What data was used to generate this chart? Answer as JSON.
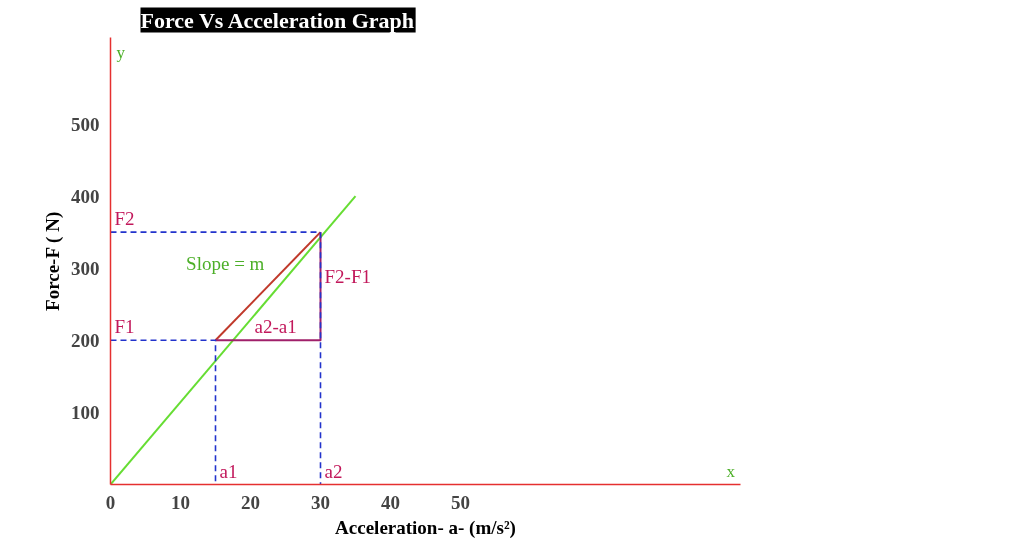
{
  "chart_data": {
    "type": "line",
    "title": "Force Vs Acceleration Graph",
    "xlabel": "Acceleration- a- (m/s²)",
    "ylabel": "Force-F ( N)",
    "xlim": [
      0,
      90
    ],
    "ylim": [
      0,
      620
    ],
    "xticks": [
      0,
      10,
      20,
      30,
      40,
      50
    ],
    "yticks": [
      100,
      200,
      300,
      400,
      500
    ],
    "grid": false,
    "series": [
      {
        "x": [
          0,
          35
        ],
        "values": [
          0,
          400
        ],
        "color": "#66dd33",
        "line_style": "solid"
      },
      {
        "x": [
          15,
          30
        ],
        "values": [
          200,
          350
        ],
        "color": "#c0392b",
        "line_style": "solid"
      },
      {
        "x": [
          15,
          30,
          30
        ],
        "values": [
          200,
          200,
          350
        ],
        "color": "#a0206a",
        "line_style": "solid"
      },
      {
        "x": [
          0,
          15,
          15
        ],
        "values": [
          200,
          200,
          0
        ],
        "color": "#2233cc",
        "line_style": "dashed"
      },
      {
        "x": [
          0,
          30,
          30
        ],
        "values": [
          350,
          350,
          0
        ],
        "color": "#2233cc",
        "line_style": "dashed"
      }
    ],
    "annotations": [
      {
        "text": "F1",
        "x": 0,
        "y": 200
      },
      {
        "text": "F2",
        "x": 0,
        "y": 350
      },
      {
        "text": "a1",
        "x": 15,
        "y": 0
      },
      {
        "text": "a2",
        "x": 30,
        "y": 0
      },
      {
        "text": "a2-a1",
        "x": 20,
        "y": 200
      },
      {
        "text": "F2-F1",
        "x": 30,
        "y": 270
      },
      "Slope = m",
      "x",
      "y"
    ]
  }
}
